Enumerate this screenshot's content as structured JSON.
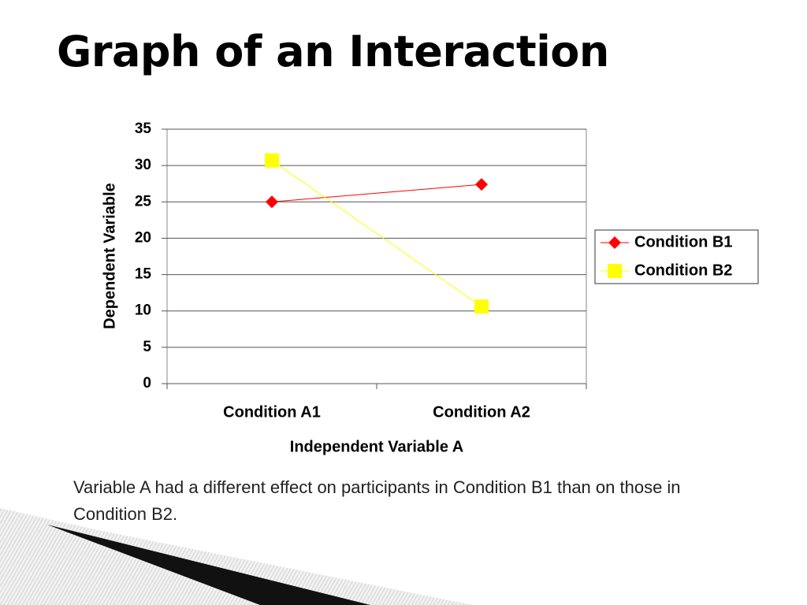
{
  "title": "Graph of an Interaction",
  "caption": "Variable A had a different effect on participants in Condition B1 than on those in Condition B2.",
  "chart_data": {
    "type": "line",
    "x_label": "Independent Variable A",
    "y_label": "Dependent Variable",
    "categories": [
      "Condition A1",
      "Condition A2"
    ],
    "series": [
      {
        "name": "Condition B1",
        "color": "#ff0000",
        "marker": "diamond",
        "values": [
          25,
          27.4
        ]
      },
      {
        "name": "Condition B2",
        "color": "#ffff00",
        "marker": "square",
        "values": [
          30.7,
          10.6
        ]
      }
    ],
    "ylim": [
      0,
      35
    ],
    "yticks": [
      0,
      5,
      10,
      15,
      20,
      25,
      30,
      35
    ],
    "grid": true,
    "legend": "right"
  }
}
